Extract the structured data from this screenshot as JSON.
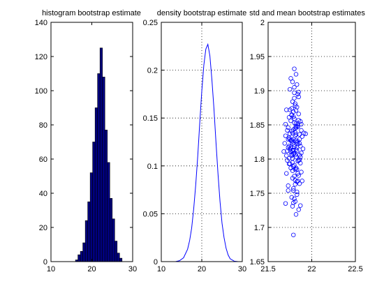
{
  "colors": {
    "figure_bg": "#ffffff",
    "axes_edge": "#000000",
    "bar_fill": "#00007f",
    "bar_edge": "#000000",
    "line": "#0000ff",
    "marker": "#0000ff",
    "grid": "#000000"
  },
  "chart_data": [
    {
      "type": "bar",
      "title": "histogram bootstrap estimate",
      "xlabel": "",
      "ylabel": "",
      "xlim": [
        10,
        30
      ],
      "ylim": [
        0,
        140
      ],
      "xticks": [
        10,
        20,
        30
      ],
      "yticks": [
        0,
        20,
        40,
        60,
        80,
        100,
        120,
        140
      ],
      "grid": false,
      "bins": [
        {
          "x0": 16.0,
          "x1": 16.6,
          "count": 1
        },
        {
          "x0": 16.6,
          "x1": 17.2,
          "count": 4
        },
        {
          "x0": 17.2,
          "x1": 17.8,
          "count": 6
        },
        {
          "x0": 17.8,
          "x1": 18.4,
          "count": 11
        },
        {
          "x0": 18.4,
          "x1": 19.0,
          "count": 24
        },
        {
          "x0": 19.0,
          "x1": 19.6,
          "count": 35
        },
        {
          "x0": 19.6,
          "x1": 20.2,
          "count": 52
        },
        {
          "x0": 20.2,
          "x1": 20.8,
          "count": 70
        },
        {
          "x0": 20.8,
          "x1": 21.4,
          "count": 90
        },
        {
          "x0": 21.4,
          "x1": 22.0,
          "count": 110
        },
        {
          "x0": 22.0,
          "x1": 22.6,
          "count": 125
        },
        {
          "x0": 22.6,
          "x1": 23.2,
          "count": 108
        },
        {
          "x0": 23.2,
          "x1": 23.8,
          "count": 77
        },
        {
          "x0": 23.8,
          "x1": 24.4,
          "count": 58
        },
        {
          "x0": 24.4,
          "x1": 25.0,
          "count": 37
        },
        {
          "x0": 25.0,
          "x1": 25.6,
          "count": 25
        },
        {
          "x0": 25.6,
          "x1": 26.2,
          "count": 12
        },
        {
          "x0": 26.2,
          "x1": 26.8,
          "count": 5
        },
        {
          "x0": 26.8,
          "x1": 27.4,
          "count": 2
        }
      ]
    },
    {
      "type": "line",
      "title": "density bootstrap estimate",
      "xlabel": "",
      "ylabel": "",
      "xlim": [
        10,
        30
      ],
      "ylim": [
        0,
        0.25
      ],
      "xticks": [
        10,
        20,
        30
      ],
      "yticks": [
        0,
        0.05,
        0.1,
        0.15,
        0.2,
        0.25
      ],
      "grid": true,
      "x": [
        13.5,
        14.5,
        15.5,
        16.5,
        17.0,
        17.5,
        18.0,
        18.5,
        19.0,
        19.5,
        20.0,
        20.5,
        21.0,
        21.5,
        22.0,
        22.5,
        23.0,
        23.5,
        24.0,
        24.5,
        25.0,
        25.5,
        26.0,
        26.5,
        27.0,
        28.0,
        29.0,
        30.0
      ],
      "y": [
        0.0,
        0.001,
        0.004,
        0.013,
        0.022,
        0.035,
        0.055,
        0.08,
        0.11,
        0.145,
        0.178,
        0.205,
        0.222,
        0.227,
        0.215,
        0.19,
        0.16,
        0.125,
        0.092,
        0.063,
        0.04,
        0.025,
        0.014,
        0.007,
        0.003,
        0.0005,
        0.0,
        0.0
      ]
    },
    {
      "type": "scatter",
      "title": "std and mean bootstrap estimates",
      "xlabel": "",
      "ylabel": "",
      "xlim": [
        21.5,
        22.5
      ],
      "ylim": [
        1.65,
        2
      ],
      "xticks": [
        21.5,
        22,
        22.5
      ],
      "yticks": [
        1.65,
        1.7,
        1.75,
        1.8,
        1.85,
        1.9,
        1.95,
        2
      ],
      "grid": true,
      "marker": "circle",
      "points": [
        [
          21.78,
          1.823
        ],
        [
          21.85,
          1.798
        ],
        [
          21.74,
          1.861
        ],
        [
          21.81,
          1.785
        ],
        [
          21.88,
          1.842
        ],
        [
          21.72,
          1.812
        ],
        [
          21.83,
          1.876
        ],
        [
          21.79,
          1.754
        ],
        [
          21.86,
          1.829
        ],
        [
          21.75,
          1.793
        ],
        [
          21.82,
          1.848
        ],
        [
          21.77,
          1.807
        ],
        [
          21.9,
          1.815
        ],
        [
          21.7,
          1.834
        ],
        [
          21.84,
          1.768
        ],
        [
          21.8,
          1.889
        ],
        [
          21.76,
          1.827
        ],
        [
          21.87,
          1.803
        ],
        [
          21.73,
          1.846
        ],
        [
          21.81,
          1.738
        ],
        [
          21.79,
          1.869
        ],
        [
          21.83,
          1.812
        ],
        [
          21.78,
          1.795
        ],
        [
          21.85,
          1.857
        ],
        [
          21.71,
          1.779
        ],
        [
          21.82,
          1.836
        ],
        [
          21.88,
          1.781
        ],
        [
          21.75,
          1.902
        ],
        [
          21.8,
          1.821
        ],
        [
          21.77,
          1.744
        ],
        [
          21.84,
          1.851
        ],
        [
          21.79,
          1.808
        ],
        [
          21.73,
          1.829
        ],
        [
          21.86,
          1.764
        ],
        [
          21.81,
          1.878
        ],
        [
          21.76,
          1.816
        ],
        [
          21.89,
          1.833
        ],
        [
          21.78,
          1.772
        ],
        [
          21.83,
          1.909
        ],
        [
          21.74,
          1.801
        ],
        [
          21.8,
          1.853
        ],
        [
          21.85,
          1.726
        ],
        [
          21.72,
          1.842
        ],
        [
          21.82,
          1.787
        ],
        [
          21.77,
          1.865
        ],
        [
          21.87,
          1.819
        ],
        [
          21.79,
          1.757
        ],
        [
          21.84,
          1.895
        ],
        [
          21.75,
          1.814
        ],
        [
          21.81,
          1.839
        ],
        [
          21.69,
          1.823
        ],
        [
          21.86,
          1.799
        ],
        [
          21.78,
          1.884
        ],
        [
          21.83,
          1.767
        ],
        [
          21.8,
          1.809
        ],
        [
          21.76,
          1.918
        ],
        [
          21.88,
          1.851
        ],
        [
          21.74,
          1.793
        ],
        [
          21.82,
          1.827
        ],
        [
          21.79,
          1.736
        ],
        [
          21.85,
          1.866
        ],
        [
          21.77,
          1.805
        ],
        [
          21.81,
          1.845
        ],
        [
          21.73,
          1.761
        ],
        [
          21.84,
          1.822
        ],
        [
          21.8,
          1.897
        ],
        [
          21.78,
          1.783
        ],
        [
          21.86,
          1.836
        ],
        [
          21.75,
          1.872
        ],
        [
          21.83,
          1.748
        ],
        [
          21.79,
          1.813
        ],
        [
          21.91,
          1.838
        ],
        [
          21.71,
          1.805
        ],
        [
          21.82,
          1.924
        ],
        [
          21.77,
          1.828
        ],
        [
          21.85,
          1.776
        ],
        [
          21.8,
          1.859
        ],
        [
          21.74,
          1.819
        ],
        [
          21.87,
          1.794
        ],
        [
          21.81,
          1.881
        ],
        [
          21.78,
          1.731
        ],
        [
          21.84,
          1.847
        ],
        [
          21.76,
          1.811
        ],
        [
          21.82,
          1.871
        ],
        [
          21.79,
          1.789
        ],
        [
          21.7,
          1.851
        ],
        [
          21.86,
          1.823
        ],
        [
          21.83,
          1.752
        ],
        [
          21.75,
          1.837
        ],
        [
          21.8,
          1.905
        ],
        [
          21.88,
          1.809
        ],
        [
          21.77,
          1.864
        ],
        [
          21.81,
          1.769
        ],
        [
          21.73,
          1.817
        ],
        [
          21.85,
          1.891
        ],
        [
          21.78,
          1.801
        ],
        [
          21.82,
          1.719
        ],
        [
          21.79,
          1.843
        ],
        [
          21.84,
          1.826
        ],
        [
          21.76,
          1.787
        ],
        [
          21.8,
          1.932
        ],
        [
          21.72,
          1.798
        ],
        [
          21.87,
          1.855
        ],
        [
          21.83,
          1.817
        ],
        [
          21.77,
          1.874
        ],
        [
          21.81,
          1.763
        ],
        [
          21.75,
          1.829
        ],
        [
          21.86,
          1.806
        ],
        [
          21.79,
          1.689
        ],
        [
          21.82,
          1.846
        ],
        [
          21.74,
          1.831
        ],
        [
          21.84,
          1.779
        ],
        [
          21.7,
          1.735
        ],
        [
          21.89,
          1.768
        ],
        [
          21.8,
          1.742
        ],
        [
          21.73,
          1.754
        ],
        [
          21.87,
          1.732
        ],
        [
          21.68,
          1.811
        ],
        [
          21.93,
          1.837
        ],
        [
          21.78,
          1.913
        ],
        [
          21.71,
          1.872
        ],
        [
          21.85,
          1.898
        ],
        [
          21.76,
          1.856
        ],
        [
          21.82,
          1.803
        ],
        [
          21.8,
          1.818
        ],
        [
          21.79,
          1.829
        ],
        [
          21.81,
          1.834
        ],
        [
          21.78,
          1.812
        ],
        [
          21.83,
          1.824
        ],
        [
          21.77,
          1.841
        ],
        [
          21.84,
          1.797
        ],
        [
          21.76,
          1.818
        ],
        [
          21.82,
          1.852
        ],
        [
          21.8,
          1.791
        ],
        [
          21.79,
          1.862
        ],
        [
          21.81,
          1.806
        ],
        [
          21.78,
          1.838
        ],
        [
          21.83,
          1.785
        ],
        [
          21.77,
          1.826
        ],
        [
          21.84,
          1.849
        ],
        [
          21.8,
          1.775
        ],
        [
          21.82,
          1.814
        ]
      ]
    }
  ]
}
